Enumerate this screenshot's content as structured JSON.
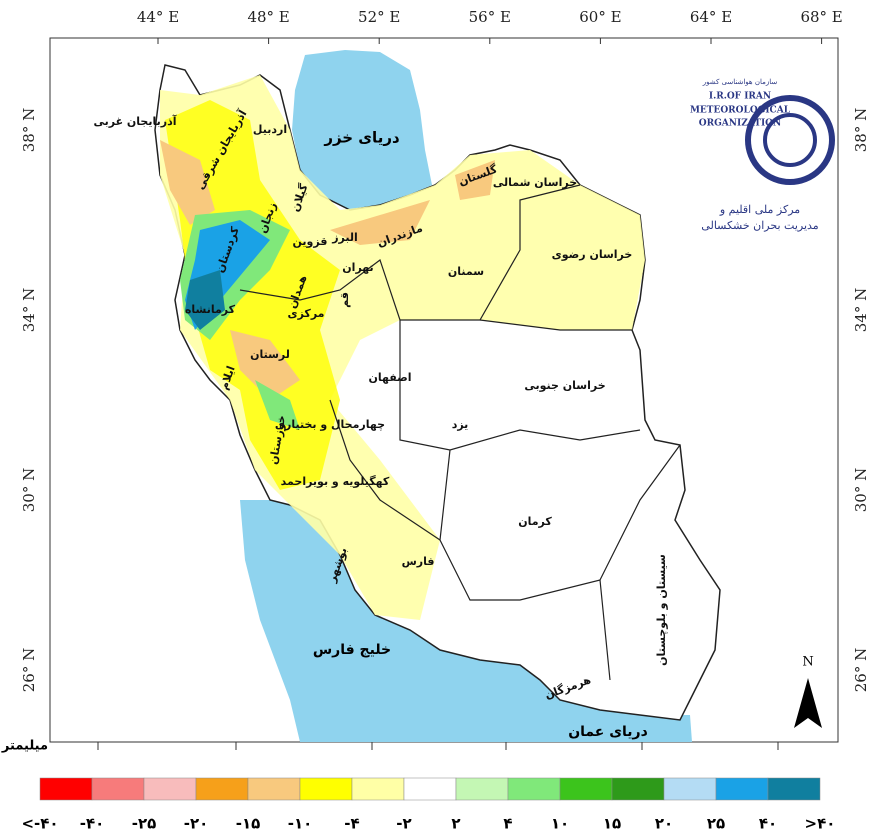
{
  "map": {
    "lon_labels": [
      "44° E",
      "48° E",
      "52° E",
      "56° E",
      "60° E",
      "64° E",
      "68° E"
    ],
    "lat_labels": [
      "38° N",
      "34° N",
      "30° N",
      "26° N"
    ],
    "seas": [
      "دریای خزر",
      "خلیج فارس",
      "دریای عمان"
    ],
    "provinces": [
      "آذربایجان غربی",
      "آذربایجان شرقی",
      "اردبیل",
      "گیلان",
      "زنجان",
      "کردستان",
      "قزوین",
      "البرز",
      "مازندران",
      "گلستان",
      "خراسان شمالی",
      "خراسان رضوی",
      "تهران",
      "سمنان",
      "همدان",
      "قم",
      "مرکزی",
      "کرمانشاه",
      "لرستان",
      "ایلام",
      "اصفهان",
      "خراسان جنوبی",
      "یزد",
      "چهارمحال و بختیاری",
      "خوزستان",
      "کهگیلویه و بویراحمد",
      "کرمان",
      "فارس",
      "بوشهر",
      "سیستان و بلوچستان",
      "هرمزگان"
    ],
    "north": "N",
    "logo": {
      "line1": "سازمان هواشناسی کشور",
      "line2": "I.R.OF IRAN",
      "line3": "METEOROLOGICAL",
      "line4": "ORGANIZATION",
      "line5": "مرکز ملی اقلیم و",
      "line6": "مدیریت بحران خشکسالی"
    }
  },
  "legend": {
    "unit": "میلیمتر",
    "colors": [
      "#ff0000",
      "#f77b7b",
      "#f8bcbc",
      "#f6a01a",
      "#f8c97e",
      "#ffff00",
      "#ffffa6",
      "#ffffff",
      "#c4f7b4",
      "#80e87a",
      "#3cc41c",
      "#2e9a1a",
      "#b4dcf4",
      "#1aa2e6",
      "#107f9f"
    ],
    "labels": [
      "<-۴۰",
      "-۴۰",
      "-۲۵",
      "-۲۰",
      "-۱۵",
      "-۱۰",
      "-۴",
      "-۲",
      "۲",
      "۴",
      "۱۰",
      "۱۵",
      "۲۰",
      "۲۵",
      "۴۰",
      ">۴۰"
    ]
  }
}
